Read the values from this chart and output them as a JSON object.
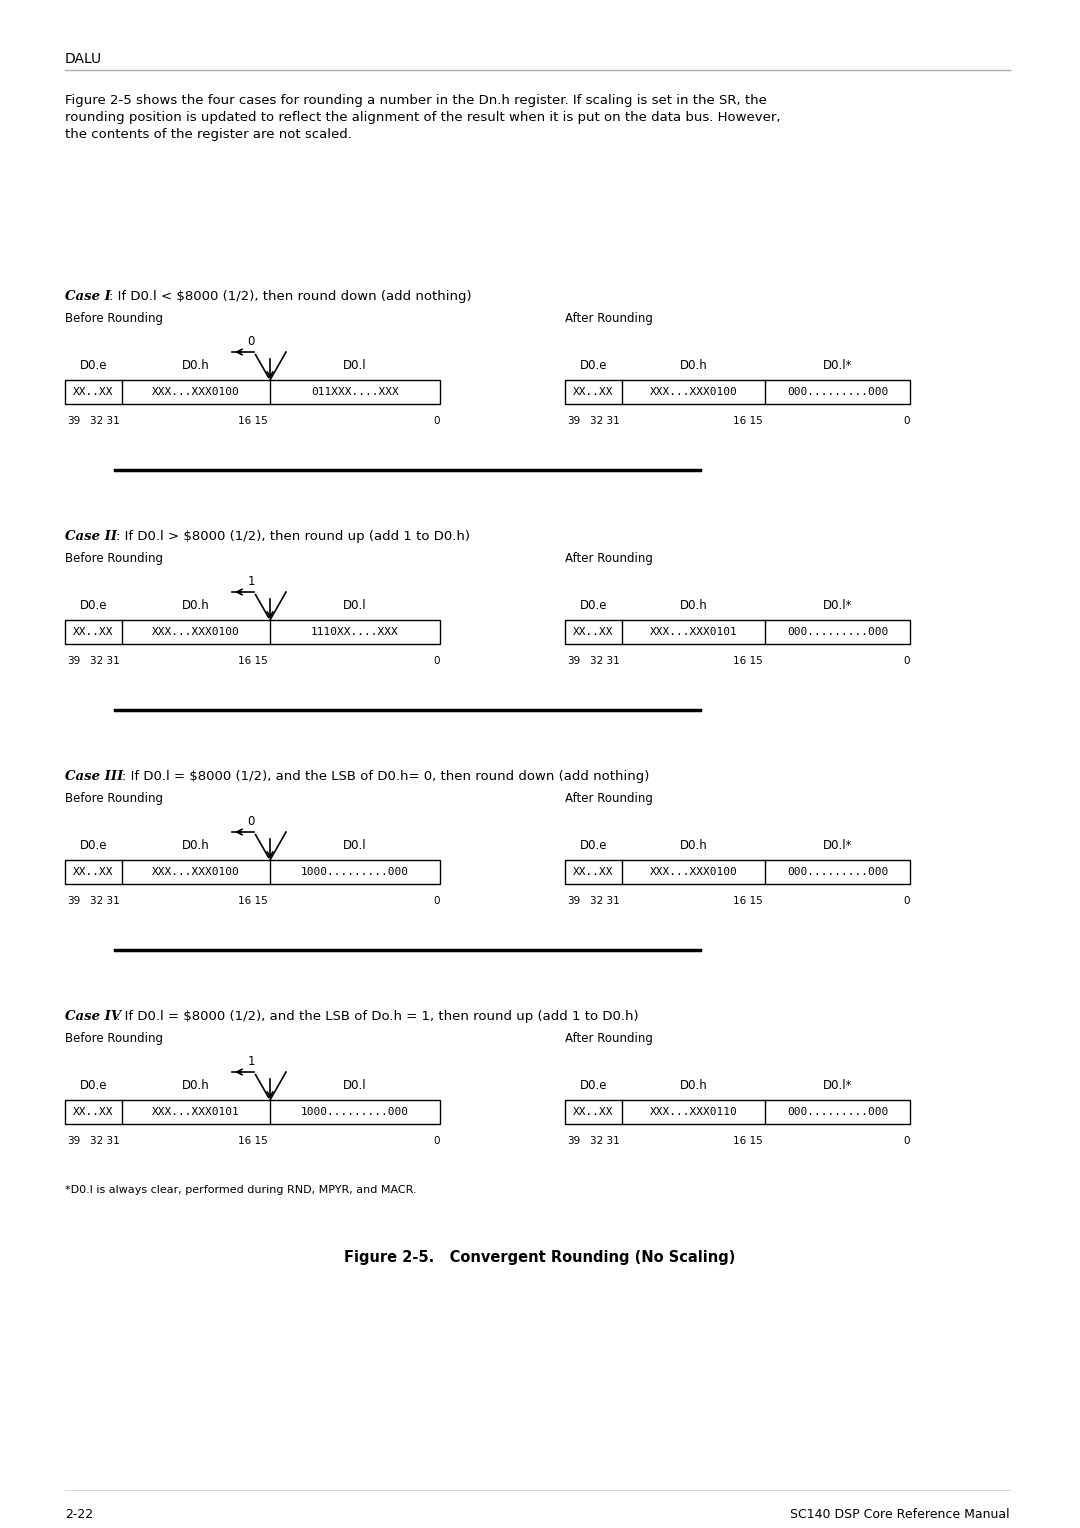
{
  "bg_color": "#ffffff",
  "header_text": "DALU",
  "intro_text": "Figure 2-5 shows the four cases for rounding a number in the Dn.h register. If scaling is set in the SR, the\nrounding position is updated to reflect the alignment of the result when it is put on the data bus. However,\nthe contents of the register are not scaled.",
  "figure_title": "Figure 2-5.   Convergent Rounding (No Scaling)",
  "footer_left": "2-22",
  "footer_right": "SC140 DSP Core Reference Manual",
  "footnote": "*D0.l is always clear, performed during RND, MPYR, and MACR.",
  "cases": [
    {
      "title_bold": "Case I",
      "title_rest": ": If D0.l < $8000 (1/2), then round down (add nothing)",
      "arrow_label": "0",
      "before_left": "XX..XX",
      "before_mid": "XXX...XXX0100",
      "before_right": "011XXX....XXX",
      "after_left": "XX..XX",
      "after_mid": "XXX...XXX0100",
      "after_right": "000.........000"
    },
    {
      "title_bold": "Case II",
      "title_rest": ": If D0.l > $8000 (1/2), then round up (add 1 to D0.h)",
      "arrow_label": "1",
      "before_left": "XX..XX",
      "before_mid": "XXX...XXX0100",
      "before_right": "1110XX....XXX",
      "after_left": "XX..XX",
      "after_mid": "XXX...XXX0101",
      "after_right": "000.........000"
    },
    {
      "title_bold": "Case III",
      "title_rest": ": If D0.l = $8000 (1/2), and the LSB of D0.h= 0, then round down (add nothing)",
      "arrow_label": "0",
      "before_left": "XX..XX",
      "before_mid": "XXX...XXX0100",
      "before_right": "1000.........000",
      "after_left": "XX..XX",
      "after_mid": "XXX...XXX0100",
      "after_right": "000.........000"
    },
    {
      "title_bold": "Case IV",
      "title_rest": ": If D0.l = $8000 (1/2), and the LSB of Do.h = 1, then round up (add 1 to D0.h)",
      "arrow_label": "1",
      "before_left": "XX..XX",
      "before_mid": "XXX...XXX0101",
      "before_right": "1000.........000",
      "after_left": "XX..XX",
      "after_mid": "XXX...XXX0110",
      "after_right": "000.........000"
    }
  ],
  "reg_labels_before": [
    "39",
    "32 31",
    "16 15",
    "0"
  ],
  "reg_labels_after": [
    "39",
    "32 31",
    "16 15",
    "0"
  ],
  "before_col_labels": [
    "D0.e",
    "D0.h",
    "D0.l"
  ],
  "after_col_labels": [
    "D0.e",
    "D0.h",
    "D0.l*"
  ]
}
